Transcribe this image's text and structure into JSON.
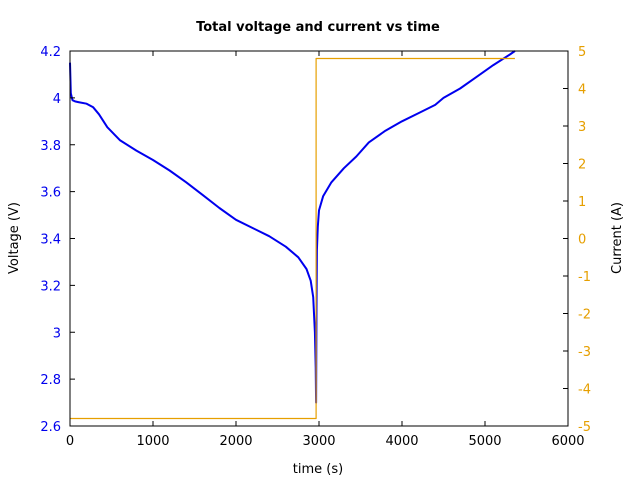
{
  "chart_data": {
    "type": "line",
    "title": "Total voltage and current vs time",
    "xlabel": "time (s)",
    "ylabel": "Voltage (V)",
    "y2label": "Current (A)",
    "xlim": [
      0,
      6000
    ],
    "ylim": [
      2.6,
      4.2
    ],
    "y2lim": [
      -5,
      5
    ],
    "grid": false,
    "legend": null,
    "x_ticks": [
      "0",
      "1000",
      "2000",
      "3000",
      "4000",
      "5000",
      "6000"
    ],
    "y_ticks": [
      "2.6",
      "2.8",
      "3",
      "3.2",
      "3.4",
      "3.6",
      "3.8",
      "4",
      "4.2"
    ],
    "y2_ticks": [
      "-5",
      "-4",
      "-3",
      "-2",
      "-1",
      "0",
      "1",
      "2",
      "3",
      "4",
      "5"
    ],
    "colors": {
      "voltage": "#0000ee",
      "current": "#e69f00",
      "y_axis": "#0000ee",
      "y2_axis": "#e69f00"
    },
    "series": [
      {
        "name": "Voltage",
        "axis": "left",
        "x": [
          0,
          10,
          30,
          60,
          100,
          200,
          280,
          350,
          450,
          600,
          800,
          1000,
          1200,
          1400,
          1600,
          1800,
          2000,
          2200,
          2400,
          2600,
          2750,
          2850,
          2900,
          2930,
          2950,
          2960,
          2965,
          2970,
          2975,
          2985,
          3000,
          3050,
          3150,
          3300,
          3450,
          3600,
          3800,
          4000,
          4200,
          4400,
          4500,
          4700,
          4900,
          5100,
          5300,
          5360
        ],
        "values": [
          4.15,
          4.02,
          3.99,
          3.985,
          3.982,
          3.975,
          3.96,
          3.93,
          3.875,
          3.82,
          3.775,
          3.735,
          3.69,
          3.64,
          3.585,
          3.53,
          3.48,
          3.445,
          3.41,
          3.365,
          3.32,
          3.27,
          3.22,
          3.15,
          3.0,
          2.85,
          2.7,
          3.1,
          3.35,
          3.45,
          3.52,
          3.58,
          3.64,
          3.7,
          3.75,
          3.81,
          3.86,
          3.9,
          3.935,
          3.97,
          4.0,
          4.04,
          4.09,
          4.14,
          4.185,
          4.2
        ]
      },
      {
        "name": "Current",
        "axis": "right",
        "x": [
          0,
          2965,
          2965,
          5360
        ],
        "values": [
          -4.8,
          -4.8,
          4.8,
          4.8
        ]
      }
    ]
  }
}
